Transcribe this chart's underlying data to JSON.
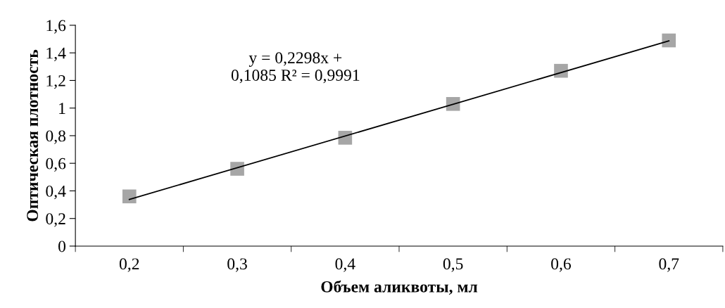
{
  "chart_data": {
    "type": "scatter",
    "xlabel": "Объем аликвоты, мл",
    "ylabel": "Оптическая плотность",
    "categories": [
      "0,2",
      "0,3",
      "0,4",
      "0,5",
      "0,6",
      "0,7"
    ],
    "series": [
      {
        "color": "#a6a6a6",
        "marker": "square",
        "values": [
          0.36,
          0.56,
          0.785,
          1.03,
          1.27,
          1.49
        ]
      },
      {
        "type": "line",
        "color": "#000000",
        "x": [
          "0,2",
          "0,7"
        ],
        "values": [
          0.338,
          1.487
        ]
      }
    ],
    "ylim": [
      0,
      1.6
    ],
    "yticks": [
      0,
      {
        "value": 0.2,
        "label": "0,2"
      },
      {
        "value": 0.4,
        "label": "0,4"
      },
      {
        "value": 0.6,
        "label": "0,6"
      },
      {
        "value": 0.8,
        "label": "0,8"
      },
      1,
      {
        "value": 1.2,
        "label": "1,2"
      },
      {
        "value": 1.4,
        "label": "1,4"
      },
      {
        "value": 1.6,
        "label": "1,6"
      }
    ],
    "annotations": [
      "y = 0,2298x +\n0,1085 R² = 0,9991"
    ],
    "grid": false,
    "legend": false
  }
}
